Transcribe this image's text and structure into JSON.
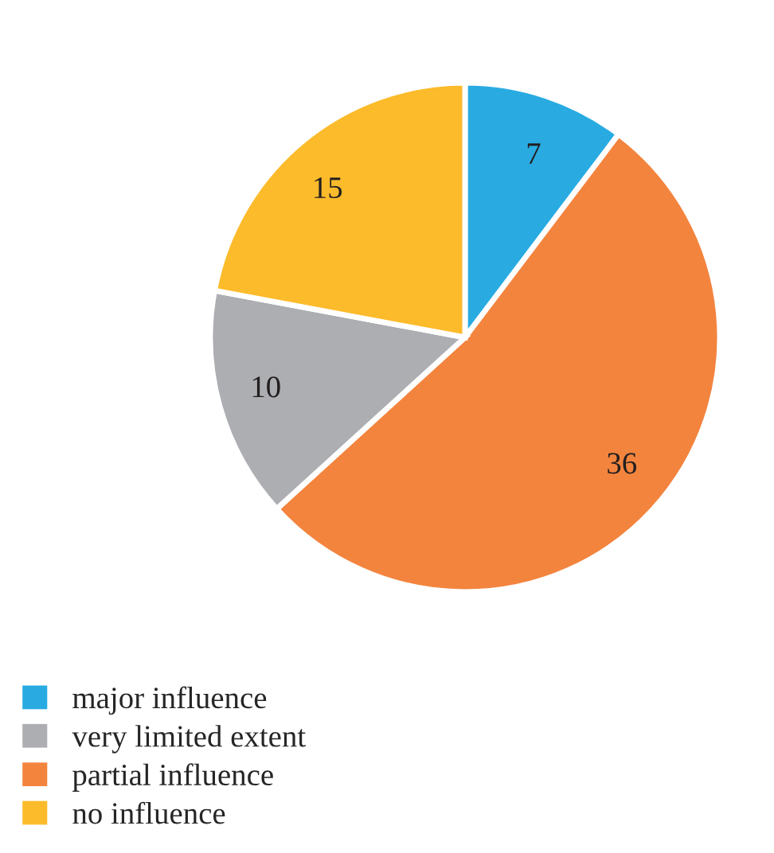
{
  "chart_data": {
    "type": "pie",
    "categories": [
      "major influence",
      "partial influence",
      "very limited extent",
      "no influence"
    ],
    "values": [
      7,
      36,
      10,
      15
    ],
    "colors": [
      "#29abe2",
      "#f3843e",
      "#adaeb2",
      "#fcbb2b"
    ],
    "data_labels": true,
    "legend": "bottom left"
  }
}
